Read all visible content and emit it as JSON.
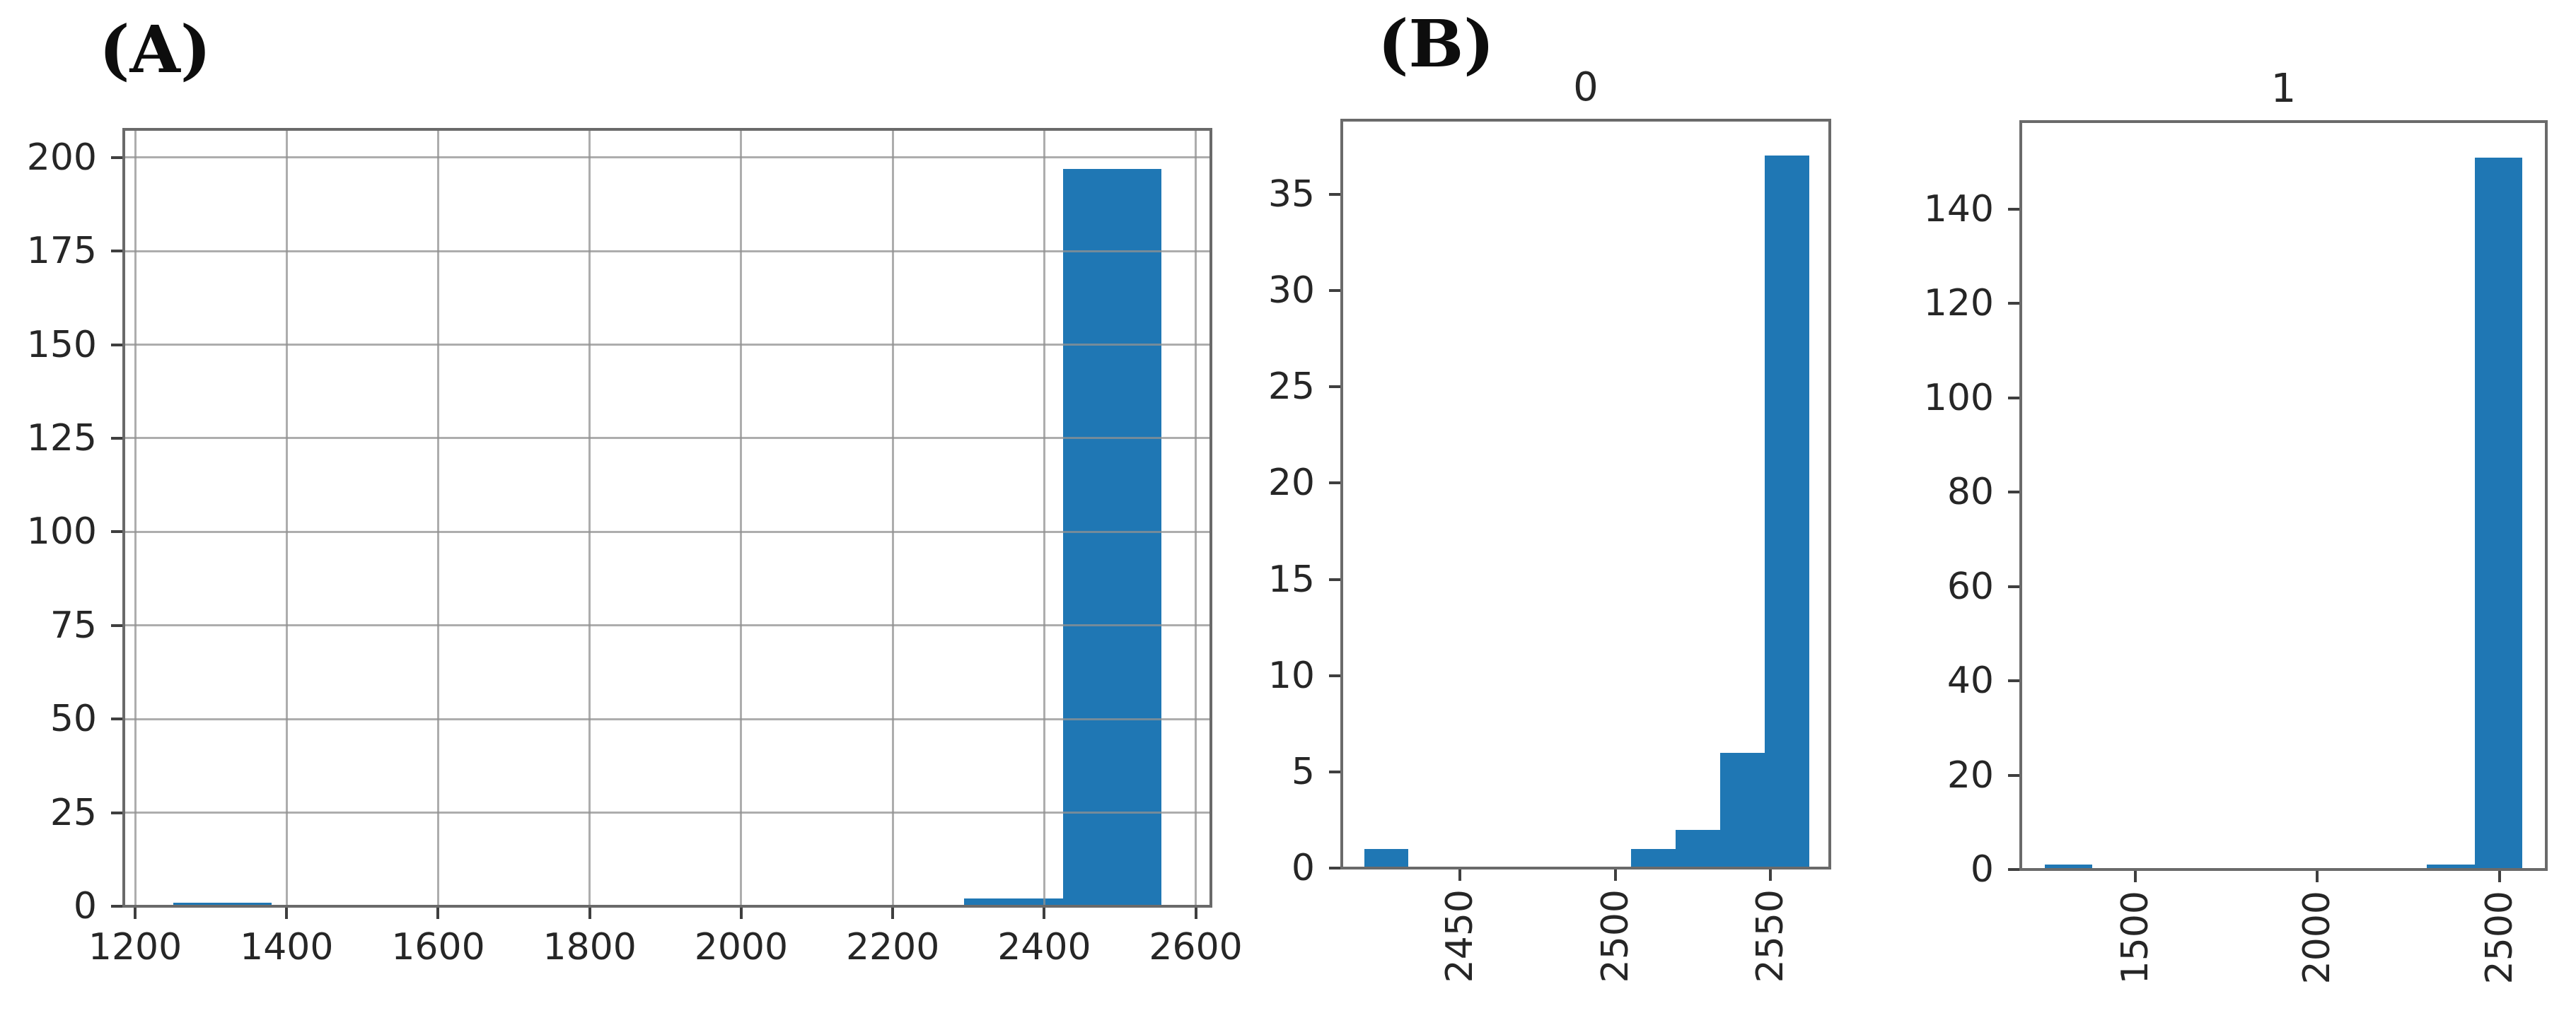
{
  "figure": {
    "panel_a_label": "(A)",
    "panel_b_label": "(B)",
    "bar_color": "#1f77b4",
    "grid_color": "#919191",
    "spine_color": "#6a6a6a",
    "text_color": "#262626",
    "background_color": "#ffffff"
  },
  "chart_data": [
    {
      "id": "A",
      "type": "bar",
      "title": "",
      "xlim": [
        1185,
        2620
      ],
      "ylim": [
        0,
        207.5
      ],
      "xticks": [
        1200,
        1400,
        1600,
        1800,
        2000,
        2200,
        2400,
        2600
      ],
      "yticks": [
        0,
        25,
        50,
        75,
        100,
        125,
        150,
        175,
        200
      ],
      "grid": true,
      "grid_above_bars": true,
      "xtick_rotation": 0,
      "bars": [
        {
          "x0": 1250.0,
          "x1": 1380.5,
          "h": 1
        },
        {
          "x0": 2294.0,
          "x1": 2424.5,
          "h": 2
        },
        {
          "x0": 2424.5,
          "x1": 2555.0,
          "h": 197
        }
      ]
    },
    {
      "id": "B0",
      "type": "bar",
      "title": "0",
      "xlim": [
        2412,
        2569
      ],
      "ylim": [
        0,
        38.85
      ],
      "xticks": [
        2450,
        2500,
        2550
      ],
      "yticks": [
        0,
        5,
        10,
        15,
        20,
        25,
        30,
        35
      ],
      "grid": false,
      "grid_above_bars": false,
      "xtick_rotation": 90,
      "bars": [
        {
          "x0": 2419.2,
          "x1": 2433.5,
          "h": 1
        },
        {
          "x0": 2505.1,
          "x1": 2519.4,
          "h": 1
        },
        {
          "x0": 2519.4,
          "x1": 2533.7,
          "h": 2
        },
        {
          "x0": 2533.7,
          "x1": 2548.0,
          "h": 6
        },
        {
          "x0": 2548.0,
          "x1": 2562.3,
          "h": 37
        }
      ]
    },
    {
      "id": "B1",
      "type": "bar",
      "title": "1",
      "xlim": [
        1186.5,
        2627.5
      ],
      "ylim": [
        0,
        158.6
      ],
      "xticks": [
        1500,
        2000,
        2500
      ],
      "yticks": [
        0,
        20,
        40,
        60,
        80,
        100,
        120,
        140
      ],
      "grid": false,
      "grid_above_bars": false,
      "xtick_rotation": 90,
      "bars": [
        {
          "x0": 1252.0,
          "x1": 1383.0,
          "h": 1
        },
        {
          "x0": 2300.0,
          "x1": 2431.0,
          "h": 1
        },
        {
          "x0": 2431.0,
          "x1": 2562.0,
          "h": 151
        }
      ]
    }
  ]
}
